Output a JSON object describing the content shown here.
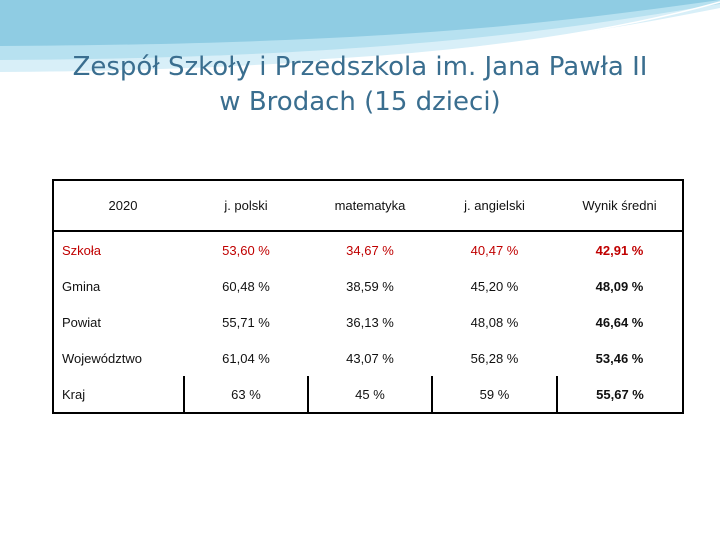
{
  "title_line1": "Zespół Szkoły i Przedszkola im. Jana Pawła II",
  "title_line2": "w Brodach (15 dzieci)",
  "colors": {
    "title": "#3a6e8f",
    "highlight": "#c00000",
    "wave": "#9fd3e6"
  },
  "table": {
    "headers": [
      "2020",
      "j. polski",
      "matematyka",
      "j. angielski",
      "Wynik średni"
    ],
    "rows": [
      {
        "label": "Szkoła",
        "values": [
          "53,60 %",
          "34,67 %",
          "40,47 %",
          "42,91 %"
        ],
        "highlight": true
      },
      {
        "label": "Gmina",
        "values": [
          "60,48 %",
          "38,59 %",
          "45,20 %",
          "48,09 %"
        ],
        "highlight": false
      },
      {
        "label": "Powiat",
        "values": [
          "55,71 %",
          "36,13 %",
          "48,08 %",
          "46,64 %"
        ],
        "highlight": false
      },
      {
        "label": "Województwo",
        "values": [
          "61,04 %",
          "43,07 %",
          "56,28 %",
          "53,46 %"
        ],
        "highlight": false
      },
      {
        "label": "Kraj",
        "values": [
          "63 %",
          "45 %",
          "59 %",
          "55,67 %"
        ],
        "highlight": false
      }
    ]
  }
}
